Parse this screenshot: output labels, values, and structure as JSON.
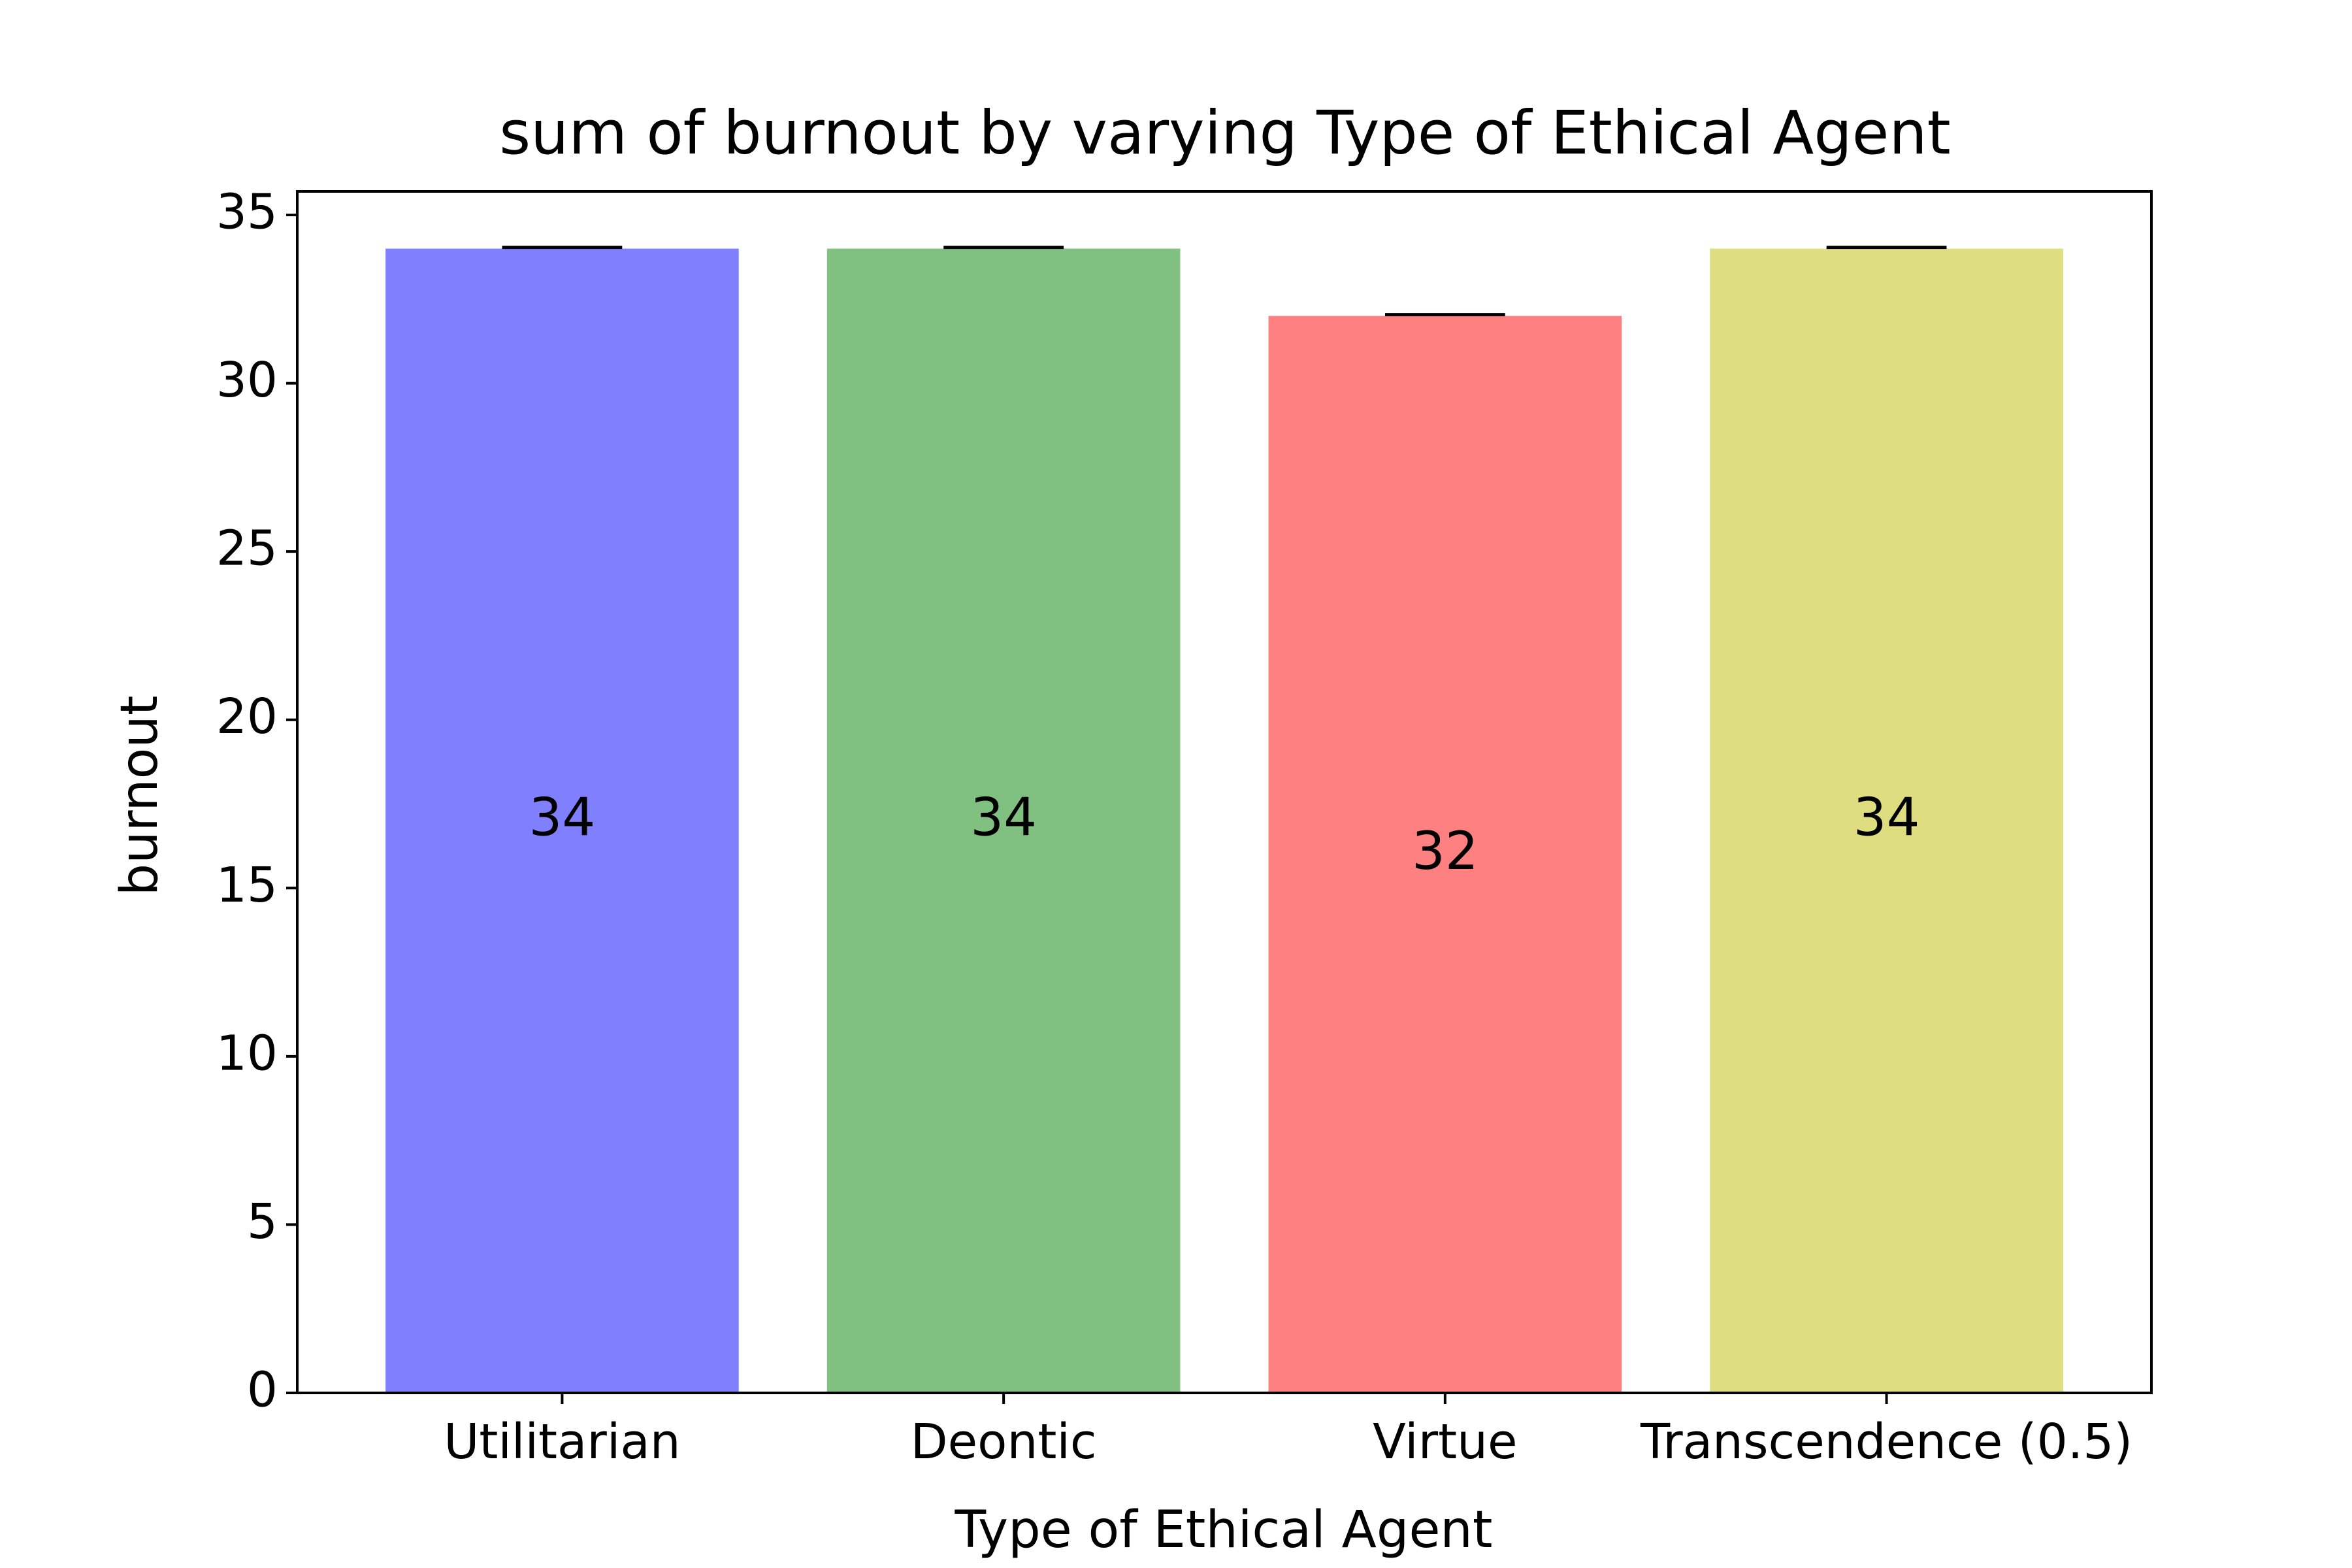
{
  "chart_data": {
    "type": "bar",
    "title": "sum of burnout by varying Type of Ethical Agent",
    "xlabel": "Type of Ethical Agent",
    "ylabel": "burnout",
    "categories": [
      "Utilitarian",
      "Deontic",
      "Virtue",
      "Transcendence (0.5)"
    ],
    "values": [
      34,
      34,
      32,
      34
    ],
    "data_labels": [
      "34",
      "34",
      "32",
      "34"
    ],
    "colors": [
      "#8080ff",
      "#80c080",
      "#ff8080",
      "#dede80"
    ],
    "ylim": [
      0,
      35.7
    ],
    "yticks": [
      0,
      5,
      10,
      15,
      20,
      25,
      30,
      35
    ],
    "ytick_labels": [
      "0",
      "5",
      "10",
      "15",
      "20",
      "25",
      "30",
      "35"
    ],
    "error_bars": true,
    "grid": false,
    "legend": false
  }
}
